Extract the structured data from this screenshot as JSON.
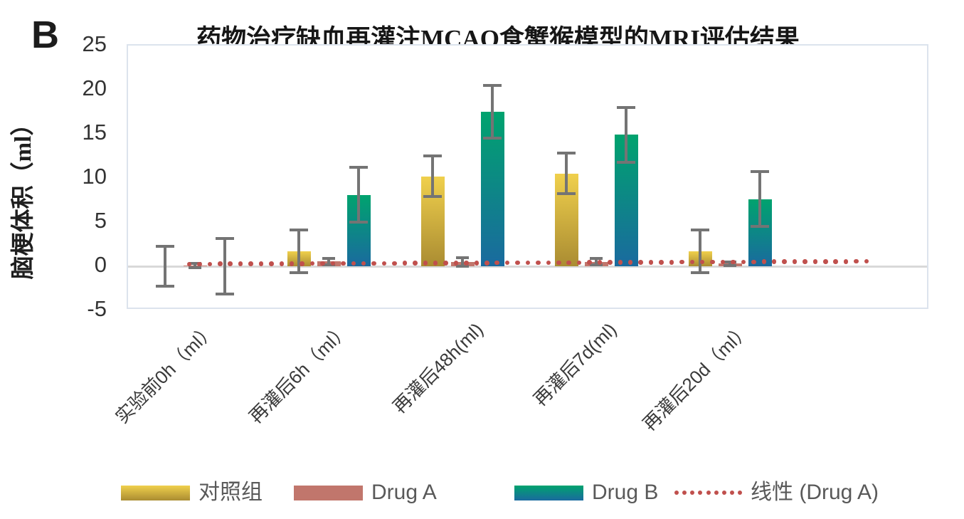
{
  "panel_label": "B",
  "chart_data": {
    "type": "bar",
    "title": "药物治疗缺血再灌注MCAO食蟹猴模型的MRI评估结果",
    "ylabel": "脑梗体积（ml）",
    "xlabel": "",
    "ylim": [
      -5,
      25
    ],
    "yticks": [
      25,
      20,
      15,
      10,
      5,
      0,
      -5
    ],
    "grid": false,
    "legend_position": "bottom",
    "categories": [
      "实验前0h（ml）",
      "再灌后6h（ml）",
      "再灌后48h(ml)",
      "再灌后7d(ml)",
      "再灌后20d（ml）"
    ],
    "series": [
      {
        "key": "control-group",
        "name": "对照组",
        "color_top": "#f0d04c",
        "color_bottom": "#aa8c32",
        "values": [
          0,
          1.7,
          10.2,
          10.5,
          1.7
        ],
        "errors": [
          2.25,
          2.4,
          2.3,
          2.3,
          2.4
        ]
      },
      {
        "key": "drug-a",
        "name": "Drug A",
        "color_top": "#c1766c",
        "color_bottom": "#c1766c",
        "values": [
          0.05,
          0.55,
          0.5,
          0.5,
          0.3
        ],
        "errors": [
          0.25,
          0.35,
          0.5,
          0.35,
          0.2
        ]
      },
      {
        "key": "drug-b",
        "name": "Drug B",
        "color_top": "#00a36e",
        "color_bottom": "#1a6a9f",
        "values": [
          0,
          8.1,
          17.5,
          14.9,
          7.6
        ],
        "errors": [
          3.15,
          3.1,
          3.0,
          3.1,
          3.1
        ]
      }
    ],
    "trendline": {
      "key": "trend-drug-a",
      "name": "线性 (Drug A)",
      "color": "#c0504d",
      "style": "dotted",
      "start_value": 0.25,
      "end_value": 0.55
    }
  },
  "colors": {
    "error_bar": "#747474",
    "zero_line": "#d9d9d9",
    "plot_border": "#dce3ed",
    "axis_text": "#333333",
    "x_label_text": "#3a3a3a",
    "legend_text": "#595959",
    "title_text": "#161616"
  }
}
